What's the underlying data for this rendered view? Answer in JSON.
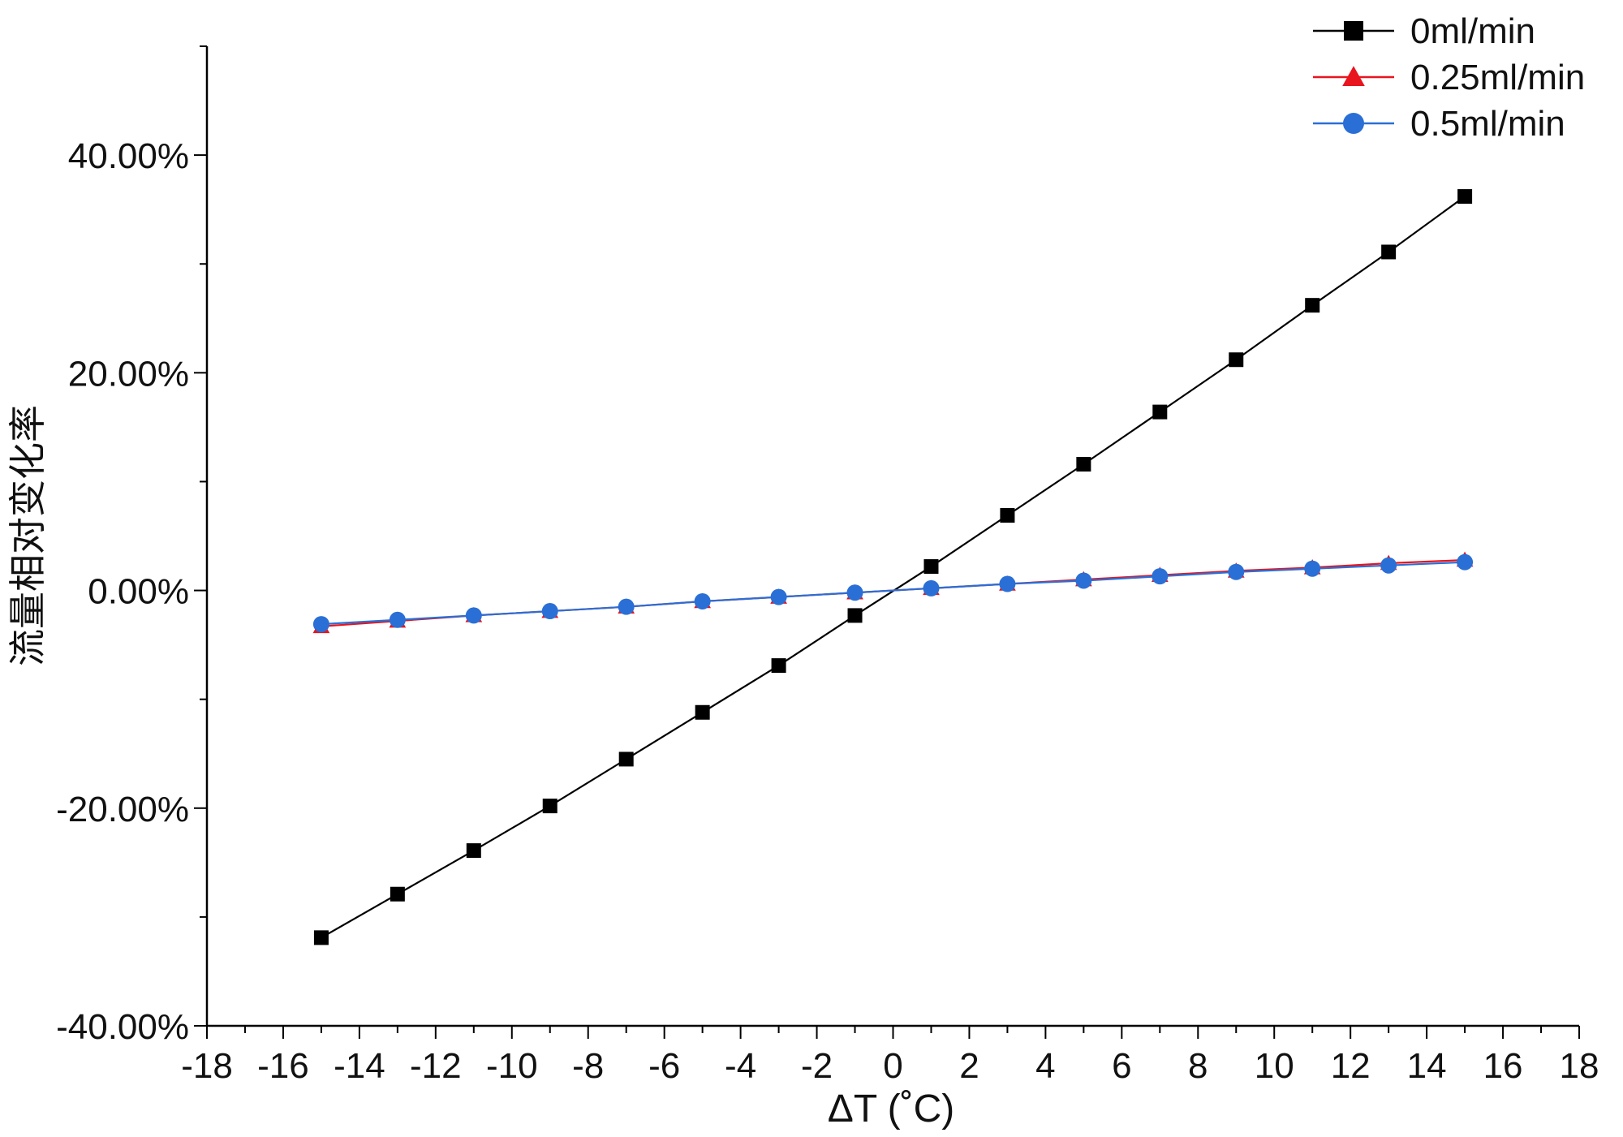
{
  "chart_data": {
    "type": "line",
    "title": "",
    "xlabel": "ΔT (˚C)",
    "ylabel": "流量相对变化率",
    "xlim": [
      -18,
      18
    ],
    "ylim": [
      -40,
      50
    ],
    "x_ticks": [
      -18,
      -16,
      -14,
      -12,
      -10,
      -8,
      -6,
      -4,
      -2,
      0,
      2,
      4,
      6,
      8,
      10,
      12,
      14,
      16,
      18
    ],
    "x_tick_labels": [
      "-18",
      "-16",
      "-14",
      "-12",
      "-10",
      "-8",
      "-6",
      "-4",
      "-2",
      "0",
      "2",
      "4",
      "6",
      "8",
      "10",
      "12",
      "14",
      "16",
      "18"
    ],
    "y_ticks": [
      -40,
      -20,
      0,
      20,
      40
    ],
    "y_tick_labels": [
      "-40.00%",
      "-20.00%",
      "0.00%",
      "20.00%",
      "40.00%"
    ],
    "y_unit": "%",
    "grid": false,
    "legend_position": "top-right",
    "x": [
      -15,
      -13,
      -11,
      -9,
      -7,
      -5,
      -3,
      -1,
      1,
      3,
      5,
      7,
      9,
      11,
      13,
      15
    ],
    "series": [
      {
        "name": "0ml/min",
        "color": "#000000",
        "marker": "square",
        "values": [
          -31.9,
          -27.9,
          -23.9,
          -19.8,
          -15.5,
          -11.2,
          -6.9,
          -2.3,
          2.2,
          6.9,
          11.6,
          16.4,
          21.2,
          26.2,
          31.1,
          36.2
        ]
      },
      {
        "name": "0.25ml/min",
        "color": "#e8141e",
        "marker": "triangle",
        "values": [
          -3.3,
          -2.8,
          -2.3,
          -1.9,
          -1.5,
          -1.0,
          -0.6,
          -0.2,
          0.2,
          0.6,
          1.0,
          1.4,
          1.8,
          2.1,
          2.5,
          2.8
        ]
      },
      {
        "name": "0.5ml/min",
        "color": "#2a6fd6",
        "marker": "circle",
        "values": [
          -3.1,
          -2.7,
          -2.3,
          -1.9,
          -1.5,
          -1.0,
          -0.6,
          -0.2,
          0.2,
          0.6,
          0.9,
          1.3,
          1.7,
          2.0,
          2.3,
          2.6
        ]
      }
    ]
  }
}
